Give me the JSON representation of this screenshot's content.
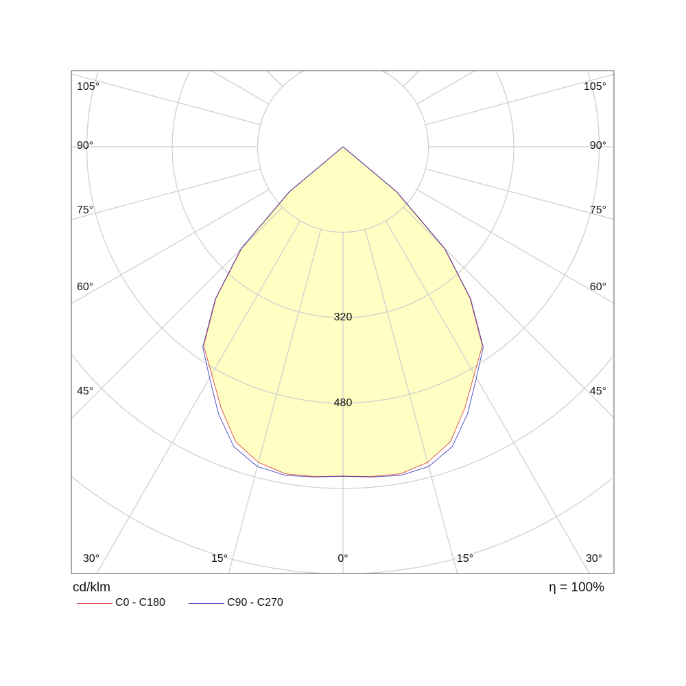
{
  "chart_data": {
    "type": "polar-line",
    "unit_label": "cd/klm",
    "efficiency_label": "η = 100%",
    "radial_ticks": [
      160,
      320,
      480,
      640,
      800,
      960
    ],
    "radial_tick_labels": [
      "320",
      "480"
    ],
    "angle_labels_side": [
      "105°",
      "90°",
      "75°",
      "60°",
      "45°"
    ],
    "angle_labels_bottom": [
      "30°",
      "15°",
      "0°",
      "15°",
      "30°"
    ],
    "grid": true,
    "fill_color": "#ffffc4",
    "gamma": [
      0,
      5,
      10,
      15,
      20,
      25,
      30,
      35,
      40,
      45,
      50,
      52,
      55,
      60,
      90,
      120,
      150,
      180
    ],
    "series": [
      {
        "name": "C0 - C180",
        "color": "#d02020",
        "values": [
          617,
          620,
          622,
          612,
          588,
          540,
          492,
          455,
          370,
          268,
          130,
          0,
          0,
          0,
          0,
          0,
          0,
          0
        ]
      },
      {
        "name": "C90 - C270",
        "color": "#2020b0",
        "values": [
          617,
          621,
          625,
          620,
          598,
          552,
          500,
          458,
          372,
          270,
          132,
          0,
          0,
          0,
          0,
          0,
          0,
          0
        ]
      }
    ]
  }
}
